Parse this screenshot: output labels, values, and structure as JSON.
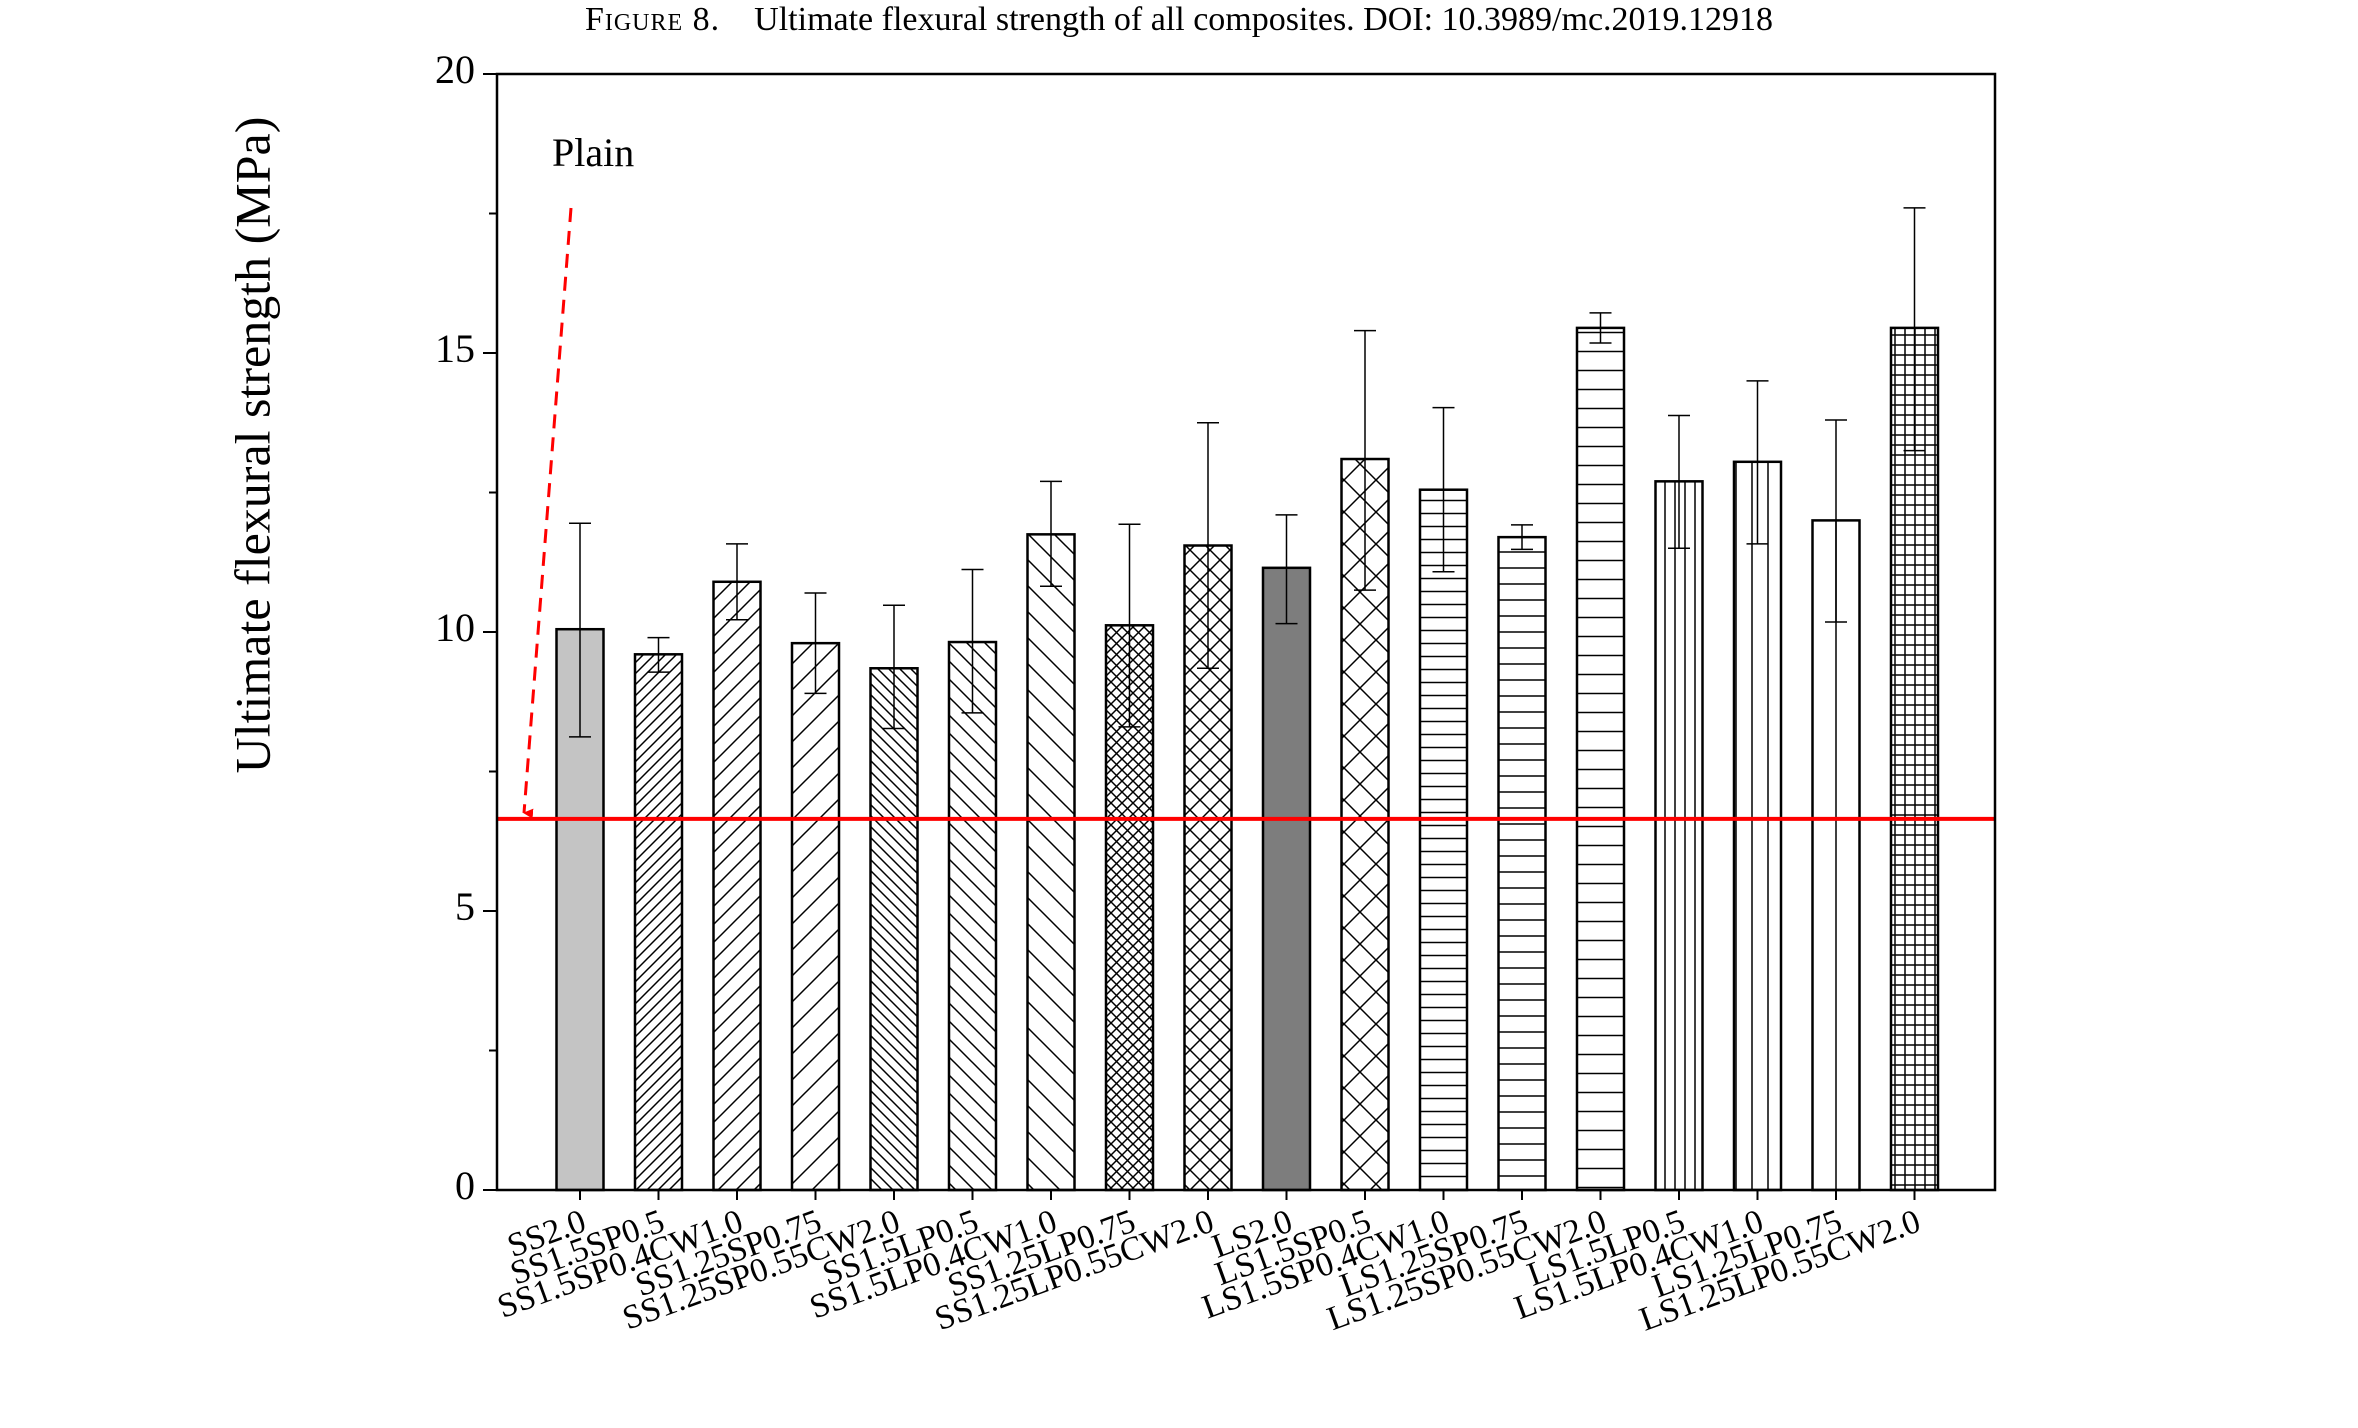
{
  "caption": {
    "label": "Figure 8.",
    "text": "Ultimate flexural strength of all composites. DOI: 10.3989/mc.2019.12918"
  },
  "chart_data": {
    "type": "bar",
    "title": "",
    "xlabel": "",
    "ylabel": "Ultimate flexural strength (MPa)",
    "ylim": [
      0,
      20
    ],
    "yticks": [
      "0",
      "5",
      "10",
      "15",
      "20"
    ],
    "grid": false,
    "categories": [
      "SS2.0",
      "SS1.5SP0.5",
      "SS1.5SP0.4CW1.0",
      "SS1.25SP0.75",
      "SS1.25SP0.55CW2.0",
      "SS1.5LP0.5",
      "SS1.5LP0.4CW1.0",
      "SS1.25LP0.75",
      "SS1.25LP0.55CW2.0",
      "LS2.0",
      "LS1.5SP0.5",
      "LS1.5SP0.4CW1.0",
      "LS1.25SP0.75",
      "LS1.25SP0.55CW2.0",
      "LS1.5LP0.5",
      "LS1.5LP0.4CW1.0",
      "LS1.25LP0.75",
      "LS1.25LP0.55CW2.0"
    ],
    "values": [
      10.05,
      9.6,
      10.9,
      9.8,
      9.35,
      9.82,
      11.75,
      10.12,
      11.55,
      11.15,
      13.1,
      12.55,
      11.7,
      15.45,
      12.7,
      13.05,
      12.0,
      15.45
    ],
    "error_upper": [
      11.95,
      9.9,
      11.58,
      10.7,
      10.48,
      11.12,
      12.7,
      11.93,
      13.75,
      12.1,
      15.4,
      14.02,
      11.92,
      15.72,
      13.88,
      14.5,
      13.8,
      17.6
    ],
    "error_lower": [
      8.12,
      9.28,
      10.22,
      8.9,
      8.27,
      8.55,
      10.82,
      8.3,
      9.35,
      10.15,
      10.75,
      11.08,
      11.48,
      15.18,
      11.5,
      11.58,
      10.18,
      13.25
    ],
    "patterns": [
      "solid-light",
      "diag-dense",
      "diag",
      "diag-sparse",
      "back-diag-dense",
      "back-diag",
      "back-diag-sparse",
      "crosshatch-dense",
      "crosshatch",
      "solid-dark",
      "crosshatch-sparse",
      "horizontal-dense",
      "horizontal",
      "horizontal-sparse",
      "vertical-dense",
      "vertical",
      "vertical-sparse",
      "grid"
    ],
    "reference_line": {
      "value": 6.65,
      "color": "#ff0000"
    },
    "annotations": [
      {
        "text": "Plain",
        "color": "#ff0000"
      }
    ],
    "colors": {
      "solid-light": "#c4c4c4",
      "solid-dark": "#7d7d7d",
      "axis": "#000000"
    }
  }
}
